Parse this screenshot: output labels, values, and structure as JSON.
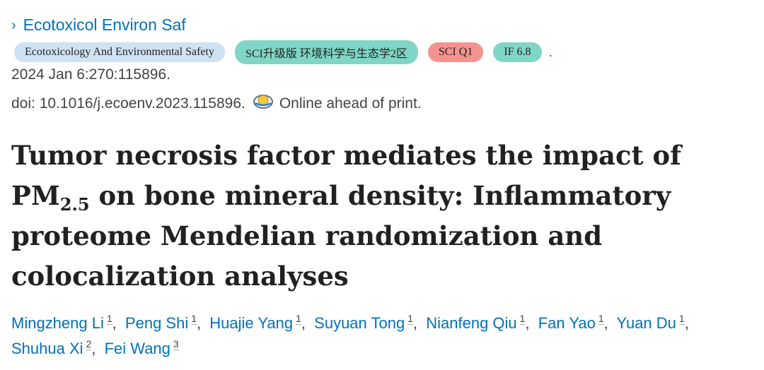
{
  "journal_link": {
    "chevron": "›",
    "label": "Ecotoxicol Environ Saf"
  },
  "badges": {
    "journal_full": "Ecotoxicology And Environmental Safety",
    "sci_upgrade": "SCI升级版 环境科学与生态学2区",
    "sci_q": "SCI Q1",
    "impact_factor": "IF 6.8",
    "trailing_dot": "."
  },
  "citation": "2024 Jan 6:270:115896.",
  "doi": {
    "text": "doi: 10.1016/j.ecoenv.2023.115896.",
    "icon": "online-print-icon",
    "status": "Online ahead of print."
  },
  "title": {
    "main": "Tumor necrosis factor mediates the impact of PM",
    "subscript": "2.5",
    "rest": "on bone mineral density: Inflammatory proteome Mendelian randomization and colocalization analyses"
  },
  "authors": [
    {
      "name": "Mingzheng Li",
      "aff": "1"
    },
    {
      "name": "Peng Shi",
      "aff": "1"
    },
    {
      "name": "Huajie Yang",
      "aff": "1"
    },
    {
      "name": "Suyuan Tong",
      "aff": "1"
    },
    {
      "name": "Nianfeng Qiu",
      "aff": "1"
    },
    {
      "name": "Fan Yao",
      "aff": "1"
    },
    {
      "name": "Yuan Du",
      "aff": "1"
    },
    {
      "name": "Shuhua Xi",
      "aff": "2"
    },
    {
      "name": "Fei Wang",
      "aff": "3"
    }
  ],
  "colors": {
    "link": "#0071bc",
    "badge_blue": "#cfe2f3",
    "badge_teal": "#7fd6c6",
    "badge_red": "#f4938e"
  }
}
